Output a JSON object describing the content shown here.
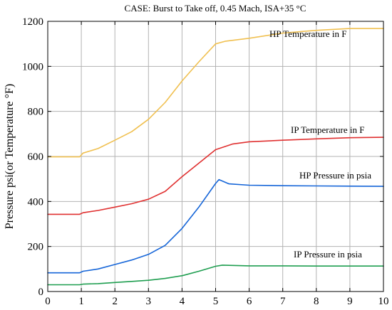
{
  "chart_data": {
    "type": "line",
    "title": "CASE: Burst to Take off, 0.45 Mach, ISA+35 °C",
    "xlabel": "",
    "ylabel": "Pressure psi(or Temperature °F)",
    "xlim": [
      0,
      10
    ],
    "ylim": [
      0,
      1200
    ],
    "x_ticks": [
      "0",
      "1",
      "2",
      "3",
      "4",
      "5",
      "6",
      "7",
      "8",
      "9",
      "10"
    ],
    "y_ticks": [
      "0",
      "200",
      "400",
      "600",
      "800",
      "1000",
      "1200"
    ],
    "grid": true,
    "series": [
      {
        "name": "HP Temperature in F",
        "color": "#f0c050",
        "x": [
          0,
          0.5,
          0.95,
          1.05,
          1.5,
          2,
          2.5,
          3,
          3.5,
          4,
          4.5,
          5,
          5.3,
          6,
          7,
          8,
          9,
          10
        ],
        "y": [
          598,
          598,
          598,
          615,
          635,
          672,
          710,
          765,
          840,
          935,
          1020,
          1100,
          1112,
          1125,
          1148,
          1160,
          1168,
          1168
        ]
      },
      {
        "name": "IP Temperature in F",
        "color": "#e03030",
        "x": [
          0,
          0.5,
          0.95,
          1.05,
          1.5,
          2,
          2.5,
          3,
          3.5,
          4,
          4.5,
          5,
          5.5,
          6,
          7,
          8,
          9,
          10
        ],
        "y": [
          343,
          343,
          343,
          350,
          360,
          375,
          390,
          410,
          445,
          510,
          570,
          630,
          655,
          665,
          672,
          678,
          683,
          685
        ]
      },
      {
        "name": "HP Pressure in psia",
        "color": "#1565d8",
        "x": [
          0,
          0.5,
          0.95,
          1.05,
          1.5,
          2,
          2.5,
          3,
          3.5,
          4,
          4.5,
          5,
          5.1,
          5.4,
          6,
          7,
          8,
          9,
          10
        ],
        "y": [
          83,
          83,
          83,
          90,
          100,
          120,
          140,
          165,
          205,
          280,
          375,
          480,
          497,
          478,
          472,
          470,
          469,
          468,
          467
        ]
      },
      {
        "name": "IP Pressure in psia",
        "color": "#1f9e50",
        "x": [
          0,
          0.5,
          0.95,
          1.05,
          1.5,
          2,
          2.5,
          3,
          3.5,
          4,
          4.5,
          5,
          5.2,
          6,
          7,
          8,
          9,
          10
        ],
        "y": [
          30,
          30,
          30,
          33,
          35,
          40,
          45,
          50,
          58,
          70,
          90,
          112,
          117,
          114,
          114,
          113,
          113,
          113
        ]
      }
    ]
  }
}
